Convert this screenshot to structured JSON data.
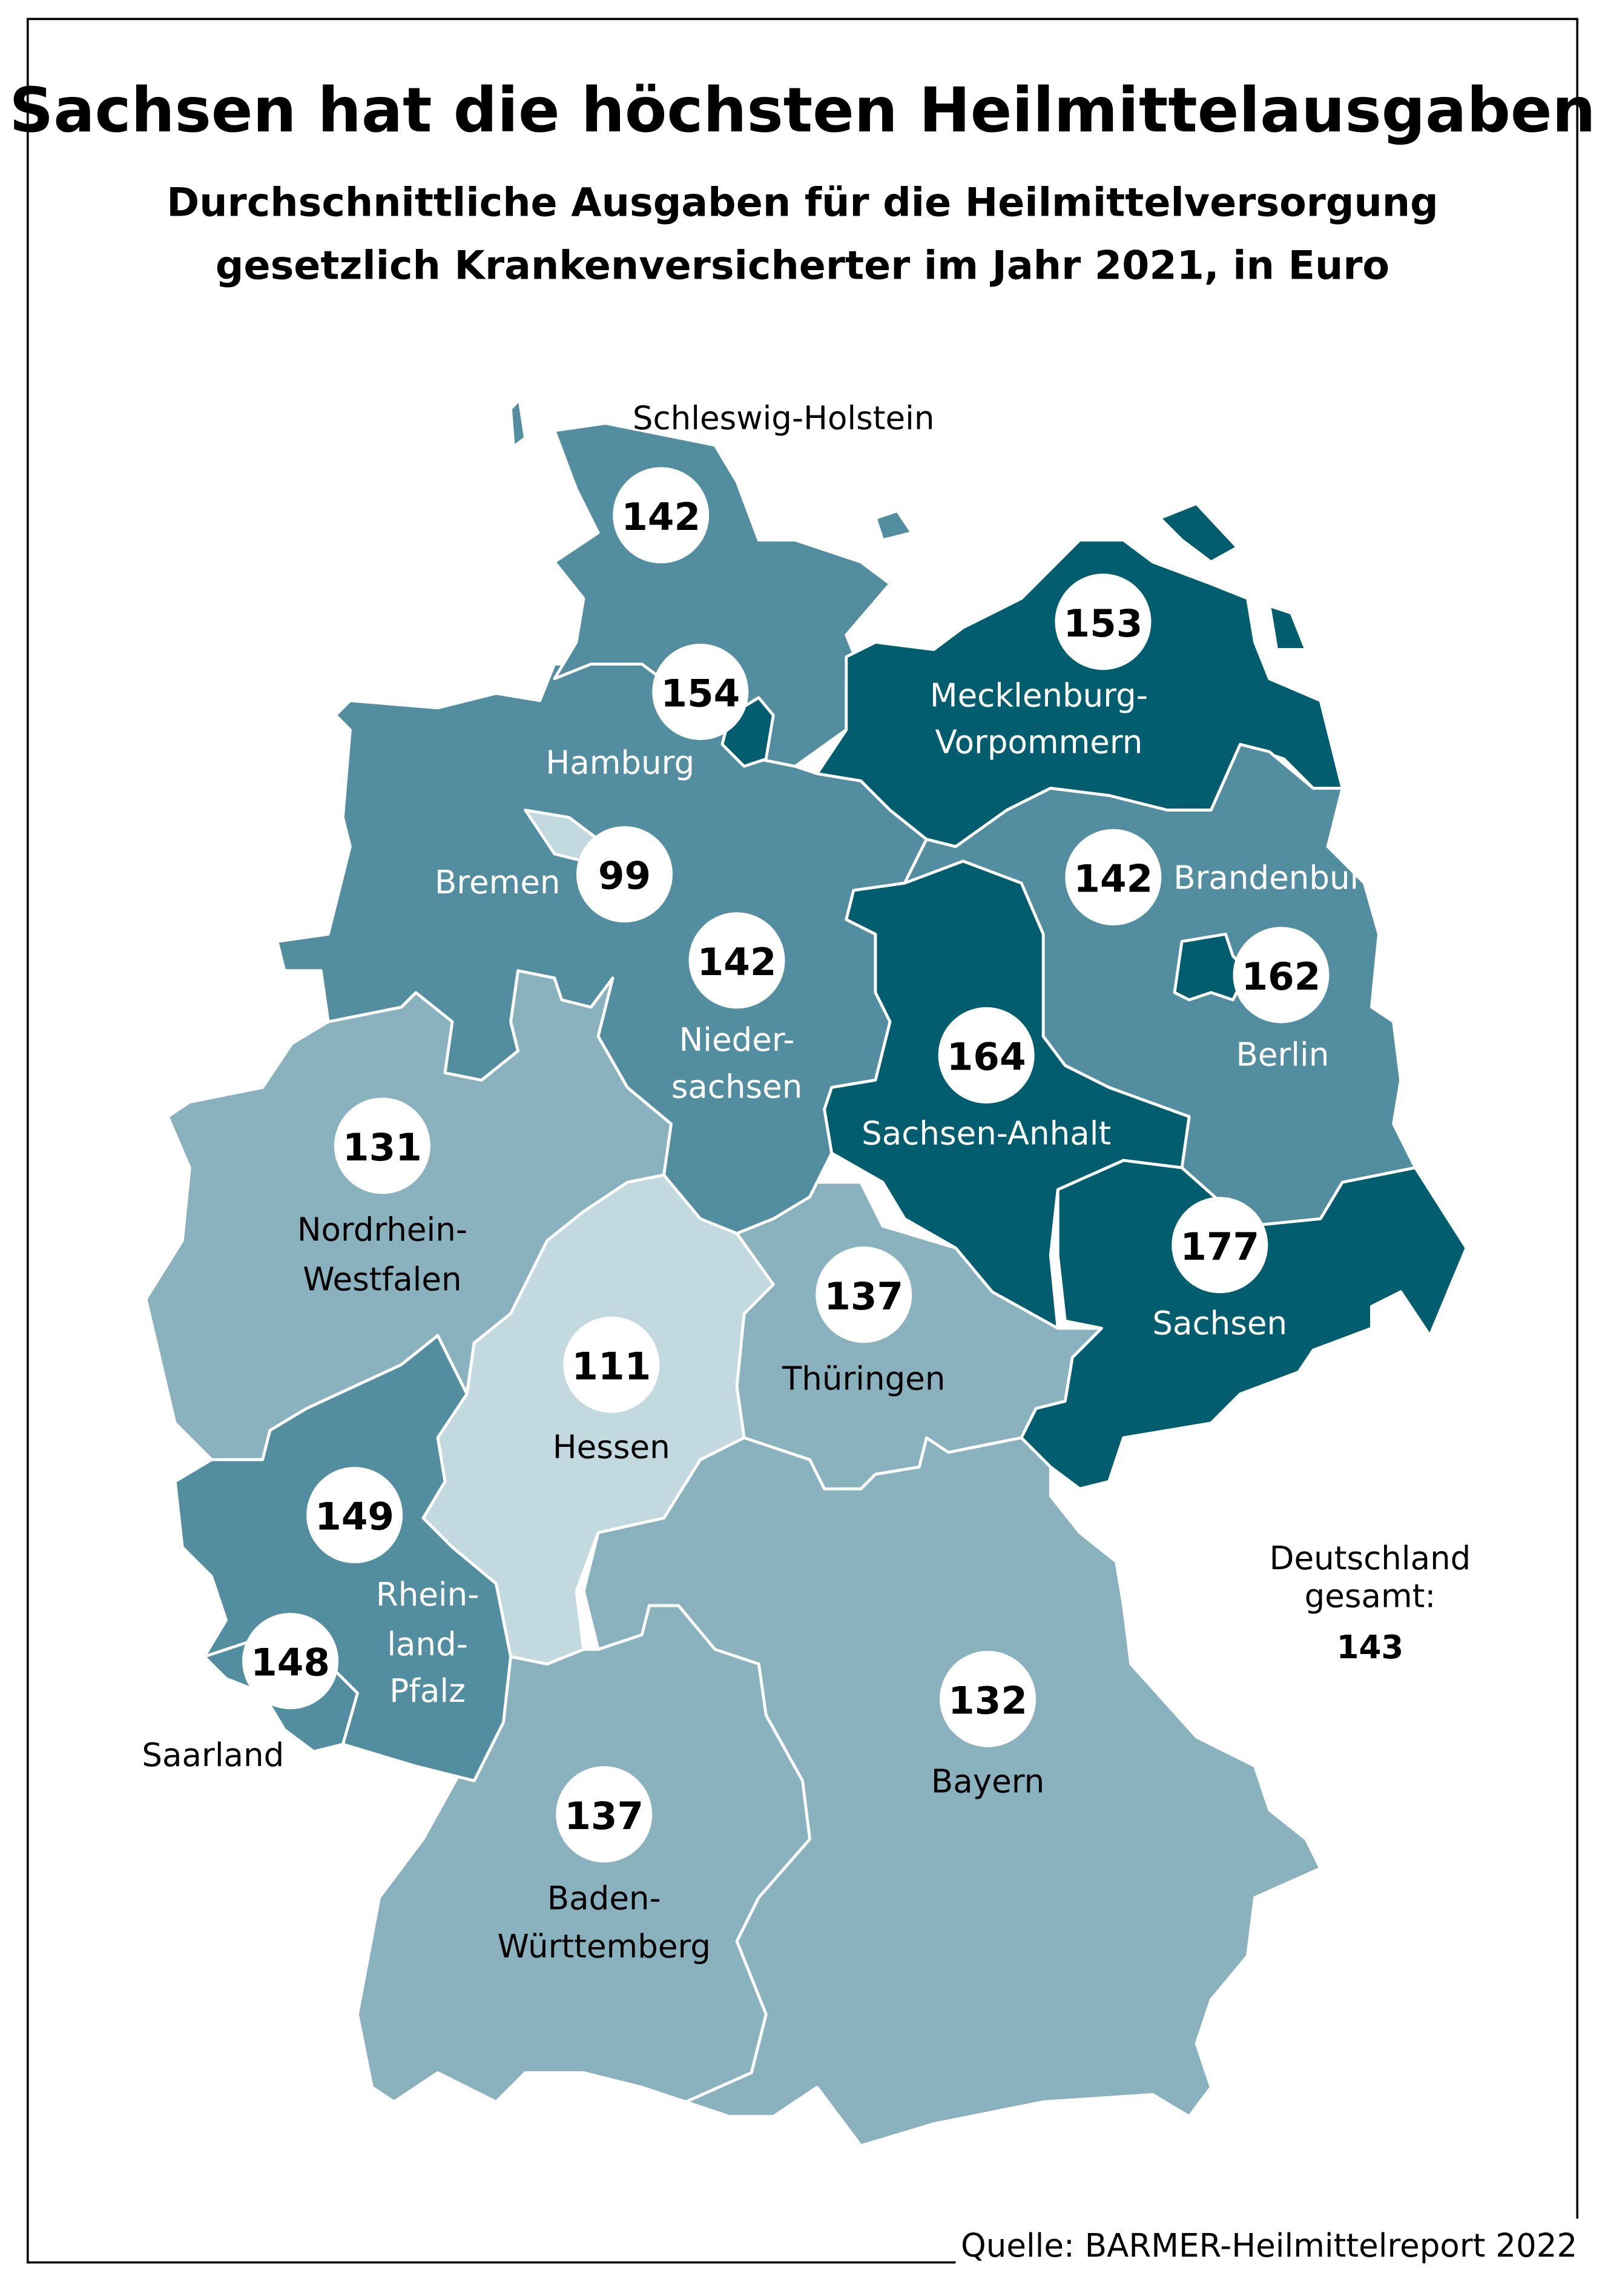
{
  "title": "Sachsen hat die höchsten Heilmittelausgaben",
  "subtitle_line1": "Durchschnittliche Ausgaben für die Heilmittelversorgung",
  "subtitle_line2": "gesetzlich Krankenversicherter im Jahr 2021, in Euro",
  "source": "Quelle: BARMER-Heilmittelreport 2022",
  "total": {
    "label1": "Deutschland",
    "label2": "gesamt:",
    "value": "143"
  },
  "colors": {
    "dark": "#025e6e",
    "mid": "#528e9f",
    "light": "#8ab2be",
    "lightest": "#c2d9df"
  },
  "states": {
    "sh": {
      "name": "Schleswig-Holstein",
      "value": "142"
    },
    "hh": {
      "name": "Hamburg",
      "value": "154"
    },
    "mv": {
      "name1": "Mecklenburg-",
      "name2": "Vorpommern",
      "value": "153"
    },
    "hb": {
      "name": "Bremen",
      "value": "99"
    },
    "bb": {
      "name": "Brandenburg",
      "value": "142"
    },
    "be": {
      "name": "Berlin",
      "value": "162"
    },
    "ni": {
      "name1": "Nieder-",
      "name2": "sachsen",
      "value": "142"
    },
    "st": {
      "name": "Sachsen-Anhalt",
      "value": "164"
    },
    "nw": {
      "name1": "Nordrhein-",
      "name2": "Westfalen",
      "value": "131"
    },
    "sn": {
      "name": "Sachsen",
      "value": "177"
    },
    "th": {
      "name": "Thüringen",
      "value": "137"
    },
    "he": {
      "name": "Hessen",
      "value": "111"
    },
    "rp": {
      "name1": "Rhein-",
      "name2": "land-",
      "name3": "Pfalz",
      "value": "149"
    },
    "sl": {
      "name": "Saarland",
      "value": "148"
    },
    "bw": {
      "name1": "Baden-",
      "name2": "Württemberg",
      "value": "137"
    },
    "by": {
      "name": "Bayern",
      "value": "132"
    }
  }
}
